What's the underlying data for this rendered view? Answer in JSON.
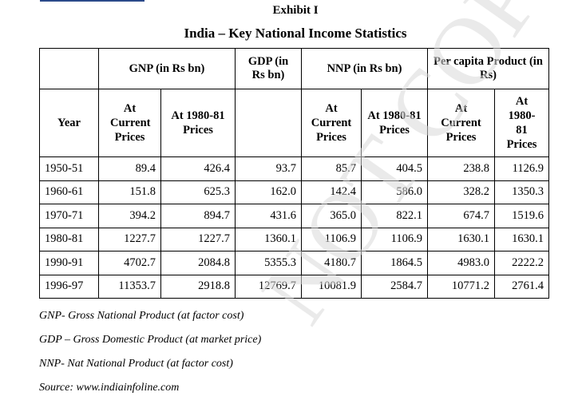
{
  "exhibit": "Exhibit I",
  "title": "India – Key National Income Statistics",
  "headers": {
    "gnp": "GNP (in Rs bn)",
    "gdp": "GDP (in Rs bn)",
    "nnp": "NNP (in Rs bn)",
    "per_capita": "Per capita Product (in Rs)",
    "year": "Year",
    "at_current_prices": "At Current Prices",
    "at_1980_81_prices": "At 1980-81 Prices",
    "nnp_at_1980_81_prices": "At 1980-81 Prices",
    "pc_at_current_prices": "At Current Prices",
    "pc_at_1980_81_prices": "At 1980-81 Prices"
  },
  "rows": [
    {
      "year": "1950-51",
      "gnp_current": "89.4",
      "gnp_1980": "426.4",
      "gdp": "93.7",
      "nnp_current": "85.7",
      "nnp_1980": "404.5",
      "pc_current": "238.8",
      "pc_1980": "1126.9"
    },
    {
      "year": "1960-61",
      "gnp_current": "151.8",
      "gnp_1980": "625.3",
      "gdp": "162.0",
      "nnp_current": "142.4",
      "nnp_1980": "586.0",
      "pc_current": "328.2",
      "pc_1980": "1350.3"
    },
    {
      "year": "1970-71",
      "gnp_current": "394.2",
      "gnp_1980": "894.7",
      "gdp": "431.6",
      "nnp_current": "365.0",
      "nnp_1980": "822.1",
      "pc_current": "674.7",
      "pc_1980": "1519.6"
    },
    {
      "year": "1980-81",
      "gnp_current": "1227.7",
      "gnp_1980": "1227.7",
      "gdp": "1360.1",
      "nnp_current": "1106.9",
      "nnp_1980": "1106.9",
      "pc_current": "1630.1",
      "pc_1980": "1630.1"
    },
    {
      "year": "1990-91",
      "gnp_current": "4702.7",
      "gnp_1980": "2084.8",
      "gdp": "5355.3",
      "nnp_current": "4180.7",
      "nnp_1980": "1864.5",
      "pc_current": "4983.0",
      "pc_1980": "2222.2"
    },
    {
      "year": "1996-97",
      "gnp_current": "11353.7",
      "gnp_1980": "2918.8",
      "gdp": "12769.7",
      "nnp_current": "10081.9",
      "nnp_1980": "2584.7",
      "pc_current": "10771.2",
      "pc_1980": "2761.4"
    }
  ],
  "notes": [
    "GNP- Gross National Product (at factor cost)",
    "GDP – Gross Domestic Product (at market price)",
    "NNP- Nat National Product (at factor cost)",
    "Source: www.indiainfoline.com"
  ],
  "watermark": "NOT COPY"
}
